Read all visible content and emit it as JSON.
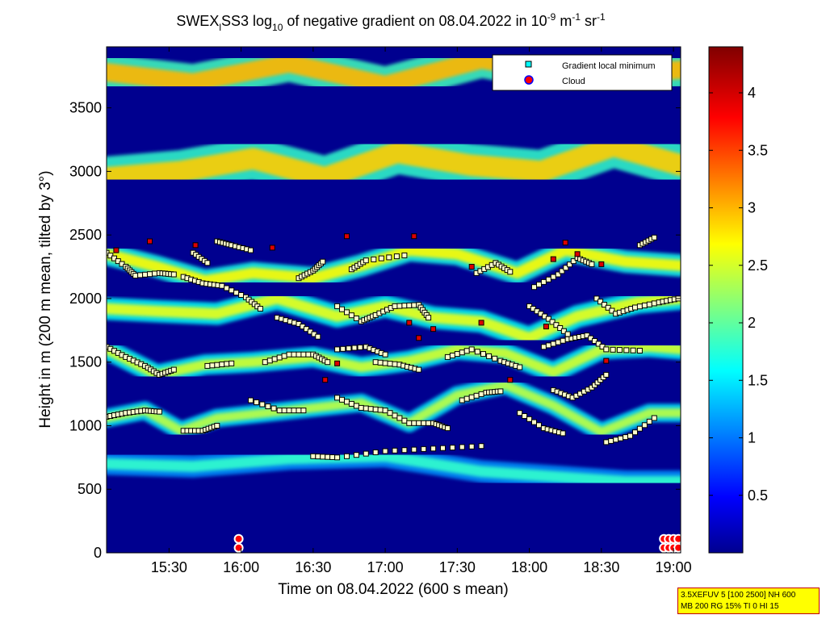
{
  "chart_data": {
    "type": "heatmap",
    "title_parts": {
      "a": "SWEX",
      "a_sub": "l",
      "b": "SS3 log",
      "b_sub": "10",
      "c": " of negative gradient on 08.04.2022 in 10",
      "c_sup": "-9",
      "d": " m",
      "d_sup": "-1",
      "e": " sr",
      "e_sup": "-1"
    },
    "xlabel": "Time on 08.04.2022 (600 s mean)",
    "ylabel": "Height in m (200 m mean, tilted by 3°)",
    "x_ticks": [
      "15:30",
      "16:00",
      "16:30",
      "17:00",
      "17:30",
      "18:00",
      "18:30",
      "19:00"
    ],
    "x_tick_minutes": [
      930,
      960,
      990,
      1020,
      1050,
      1080,
      1110,
      1140
    ],
    "xlim_minutes": [
      904,
      1143
    ],
    "y_ticks": [
      "0",
      "500",
      "1000",
      "1500",
      "2000",
      "2500",
      "3000",
      "3500"
    ],
    "y_tick_values": [
      0,
      500,
      1000,
      1500,
      2000,
      2500,
      3000,
      3500
    ],
    "ylim": [
      0,
      3980
    ],
    "colorbar": {
      "ticks": [
        "0.5",
        "1",
        "1.5",
        "2",
        "2.5",
        "3",
        "3.5",
        "4"
      ],
      "tick_values": [
        0.5,
        1,
        1.5,
        2,
        2.5,
        3,
        3.5,
        4
      ],
      "range": [
        0,
        4.4
      ],
      "colormap": "jet"
    },
    "legend": {
      "placement": "top-right",
      "entries": [
        {
          "label": "Gradient local minimum",
          "marker": "square",
          "color": "#00ffff"
        },
        {
          "label": "Cloud",
          "marker": "circle",
          "color": "#ff0000"
        }
      ]
    },
    "layers": [
      {
        "name": "surface",
        "points": [
          [
            904,
            500
          ],
          [
            1143,
            500
          ]
        ],
        "value": 1.0,
        "width": 120
      },
      {
        "name": "low",
        "points": [
          [
            904,
            700
          ],
          [
            940,
            680
          ],
          [
            980,
            740
          ],
          [
            1020,
            760
          ],
          [
            1060,
            640
          ],
          [
            1090,
            600
          ],
          [
            1120,
            560
          ],
          [
            1143,
            560
          ]
        ],
        "value": 1.8,
        "width": 110
      },
      {
        "name": "l1000",
        "points": [
          [
            904,
            1060
          ],
          [
            920,
            1120
          ],
          [
            935,
            960
          ],
          [
            950,
            1060
          ],
          [
            970,
            1100
          ],
          [
            990,
            1140
          ],
          [
            1010,
            1180
          ],
          [
            1030,
            1020
          ],
          [
            1050,
            1240
          ],
          [
            1070,
            1320
          ],
          [
            1090,
            1160
          ],
          [
            1110,
            950
          ],
          [
            1130,
            1100
          ],
          [
            1143,
            1100
          ]
        ],
        "value": 2.4,
        "width": 90
      },
      {
        "name": "l1500",
        "points": [
          [
            904,
            1600
          ],
          [
            925,
            1400
          ],
          [
            945,
            1480
          ],
          [
            965,
            1500
          ],
          [
            990,
            1540
          ],
          [
            1010,
            1460
          ],
          [
            1030,
            1510
          ],
          [
            1050,
            1600
          ],
          [
            1070,
            1570
          ],
          [
            1090,
            1420
          ],
          [
            1110,
            1600
          ],
          [
            1130,
            1620
          ],
          [
            1143,
            1600
          ]
        ],
        "value": 2.5,
        "width": 100
      },
      {
        "name": "l1900",
        "points": [
          [
            904,
            1920
          ],
          [
            925,
            1900
          ],
          [
            950,
            1880
          ],
          [
            975,
            2000
          ],
          [
            1000,
            1860
          ],
          [
            1020,
            1940
          ],
          [
            1040,
            1850
          ],
          [
            1060,
            1820
          ],
          [
            1080,
            1690
          ],
          [
            1100,
            1860
          ],
          [
            1125,
            1970
          ],
          [
            1143,
            2000
          ]
        ],
        "value": 2.6,
        "width": 110
      },
      {
        "name": "l2300",
        "points": [
          [
            904,
            2350
          ],
          [
            925,
            2250
          ],
          [
            945,
            2140
          ],
          [
            965,
            2200
          ],
          [
            990,
            2160
          ],
          [
            1010,
            2260
          ],
          [
            1030,
            2380
          ],
          [
            1050,
            2350
          ],
          [
            1075,
            2200
          ],
          [
            1095,
            2380
          ],
          [
            1120,
            2290
          ],
          [
            1143,
            2260
          ]
        ],
        "value": 2.7,
        "width": 110
      },
      {
        "name": "l3000",
        "points": [
          [
            904,
            2950
          ],
          [
            935,
            3000
          ],
          [
            965,
            3100
          ],
          [
            995,
            2950
          ],
          [
            1025,
            3150
          ],
          [
            1055,
            3050
          ],
          [
            1085,
            3000
          ],
          [
            1115,
            3200
          ],
          [
            1143,
            3050
          ]
        ],
        "value": 2.9,
        "width": 210
      },
      {
        "name": "l3700",
        "points": [
          [
            904,
            3780
          ],
          [
            940,
            3700
          ],
          [
            980,
            3850
          ],
          [
            1020,
            3680
          ],
          [
            1060,
            3880
          ],
          [
            1100,
            3750
          ],
          [
            1143,
            3800
          ]
        ],
        "value": 3.0,
        "width": 180
      }
    ],
    "gradient_minima": [
      {
        "points": [
          [
            904,
            2360
          ],
          [
            912,
            2250
          ],
          [
            916,
            2180
          ],
          [
            926,
            2200
          ],
          [
            932,
            2190
          ]
        ]
      },
      {
        "points": [
          [
            936,
            2170
          ],
          [
            944,
            2120
          ],
          [
            952,
            2100
          ],
          [
            962,
            2010
          ],
          [
            968,
            1920
          ]
        ]
      },
      {
        "points": [
          [
            984,
            2160
          ],
          [
            990,
            2220
          ],
          [
            994,
            2290
          ]
        ]
      },
      {
        "points": [
          [
            1006,
            2230
          ],
          [
            1012,
            2300
          ],
          [
            1028,
            2340
          ]
        ]
      },
      {
        "points": [
          [
            1058,
            2200
          ],
          [
            1066,
            2280
          ],
          [
            1072,
            2210
          ]
        ]
      },
      {
        "points": [
          [
            1082,
            2090
          ],
          [
            1092,
            2190
          ],
          [
            1100,
            2320
          ],
          [
            1106,
            2270
          ]
        ]
      },
      {
        "points": [
          [
            1126,
            2420
          ],
          [
            1132,
            2480
          ]
        ]
      },
      {
        "points": [
          [
            904,
            1620
          ],
          [
            912,
            1540
          ],
          [
            920,
            1470
          ],
          [
            926,
            1400
          ],
          [
            932,
            1440
          ]
        ]
      },
      {
        "points": [
          [
            946,
            1470
          ],
          [
            956,
            1490
          ]
        ]
      },
      {
        "points": [
          [
            970,
            1500
          ],
          [
            980,
            1560
          ],
          [
            990,
            1560
          ],
          [
            996,
            1500
          ]
        ]
      },
      {
        "points": [
          [
            1016,
            1500
          ],
          [
            1026,
            1480
          ],
          [
            1034,
            1440
          ]
        ]
      },
      {
        "points": [
          [
            1046,
            1540
          ],
          [
            1056,
            1600
          ],
          [
            1068,
            1510
          ],
          [
            1076,
            1460
          ]
        ]
      },
      {
        "points": [
          [
            1086,
            1620
          ],
          [
            1096,
            1680
          ],
          [
            1104,
            1710
          ],
          [
            1112,
            1600
          ],
          [
            1126,
            1590
          ]
        ]
      },
      {
        "points": [
          [
            1000,
            1940
          ],
          [
            1010,
            1820
          ],
          [
            1016,
            1870
          ],
          [
            1024,
            1940
          ],
          [
            1034,
            1950
          ],
          [
            1038,
            1850
          ]
        ]
      },
      {
        "points": [
          [
            1108,
            2000
          ],
          [
            1116,
            1880
          ],
          [
            1124,
            1930
          ],
          [
            1134,
            1970
          ],
          [
            1142,
            2000
          ]
        ]
      },
      {
        "points": [
          [
            1080,
            1940
          ],
          [
            1088,
            1840
          ],
          [
            1096,
            1720
          ]
        ]
      },
      {
        "points": [
          [
            904,
            1070
          ],
          [
            912,
            1100
          ],
          [
            920,
            1120
          ],
          [
            926,
            1110
          ]
        ]
      },
      {
        "points": [
          [
            936,
            960
          ],
          [
            944,
            960
          ],
          [
            950,
            1000
          ]
        ]
      },
      {
        "points": [
          [
            964,
            1200
          ],
          [
            976,
            1120
          ],
          [
            986,
            1120
          ]
        ]
      },
      {
        "points": [
          [
            1000,
            1220
          ],
          [
            1010,
            1140
          ],
          [
            1020,
            1120
          ],
          [
            1030,
            1020
          ],
          [
            1040,
            1020
          ],
          [
            1046,
            980
          ]
        ]
      },
      {
        "points": [
          [
            1052,
            1200
          ],
          [
            1062,
            1260
          ],
          [
            1068,
            1270
          ]
        ]
      },
      {
        "points": [
          [
            1076,
            1100
          ],
          [
            1086,
            980
          ],
          [
            1094,
            940
          ]
        ]
      },
      {
        "points": [
          [
            1112,
            870
          ],
          [
            1122,
            920
          ],
          [
            1132,
            1060
          ]
        ]
      },
      {
        "points": [
          [
            1090,
            1280
          ],
          [
            1098,
            1220
          ],
          [
            1106,
            1300
          ],
          [
            1112,
            1400
          ]
        ]
      },
      {
        "points": [
          [
            990,
            760
          ],
          [
            1000,
            750
          ],
          [
            1020,
            800
          ],
          [
            1040,
            820
          ],
          [
            1060,
            840
          ]
        ]
      },
      {
        "points": [
          [
            1000,
            1600
          ],
          [
            1012,
            1620
          ],
          [
            1020,
            1560
          ]
        ]
      },
      {
        "points": [
          [
            950,
            2450
          ],
          [
            956,
            2420
          ],
          [
            964,
            2380
          ]
        ]
      },
      {
        "points": [
          [
            940,
            2360
          ],
          [
            946,
            2280
          ]
        ]
      },
      {
        "points": [
          [
            975,
            1850
          ],
          [
            984,
            1800
          ],
          [
            992,
            1700
          ]
        ]
      }
    ],
    "cloud_points": [
      {
        "x": 908,
        "y": 2380
      },
      {
        "x": 922,
        "y": 2450
      },
      {
        "x": 941,
        "y": 2420
      },
      {
        "x": 973,
        "y": 2400
      },
      {
        "x": 1004,
        "y": 2490
      },
      {
        "x": 1032,
        "y": 2490
      },
      {
        "x": 1056,
        "y": 2250
      },
      {
        "x": 1095,
        "y": 2440
      },
      {
        "x": 1100,
        "y": 2350
      },
      {
        "x": 1110,
        "y": 2270
      },
      {
        "x": 1030,
        "y": 1810
      },
      {
        "x": 1034,
        "y": 1690
      },
      {
        "x": 995,
        "y": 1360
      },
      {
        "x": 1000,
        "y": 1490
      },
      {
        "x": 1040,
        "y": 1760
      },
      {
        "x": 1072,
        "y": 1360
      },
      {
        "x": 1087,
        "y": 1780
      },
      {
        "x": 1112,
        "y": 1510
      },
      {
        "x": 1060,
        "y": 1810
      },
      {
        "x": 1090,
        "y": 2310
      }
    ],
    "surface_clouds": [
      {
        "x_from": 959,
        "x_to": 960,
        "y": 110
      },
      {
        "x_from": 959,
        "x_to": 960,
        "y": 40
      },
      {
        "x_from": 1136,
        "x_to": 1143,
        "y": 110
      },
      {
        "x_from": 1136,
        "x_to": 1143,
        "y": 40
      }
    ]
  },
  "info_box": {
    "line1": "3.5XEFUV 5 [100 2500] NH 600",
    "line2": "MB 200 RG 15% TI 0 HI 15"
  }
}
